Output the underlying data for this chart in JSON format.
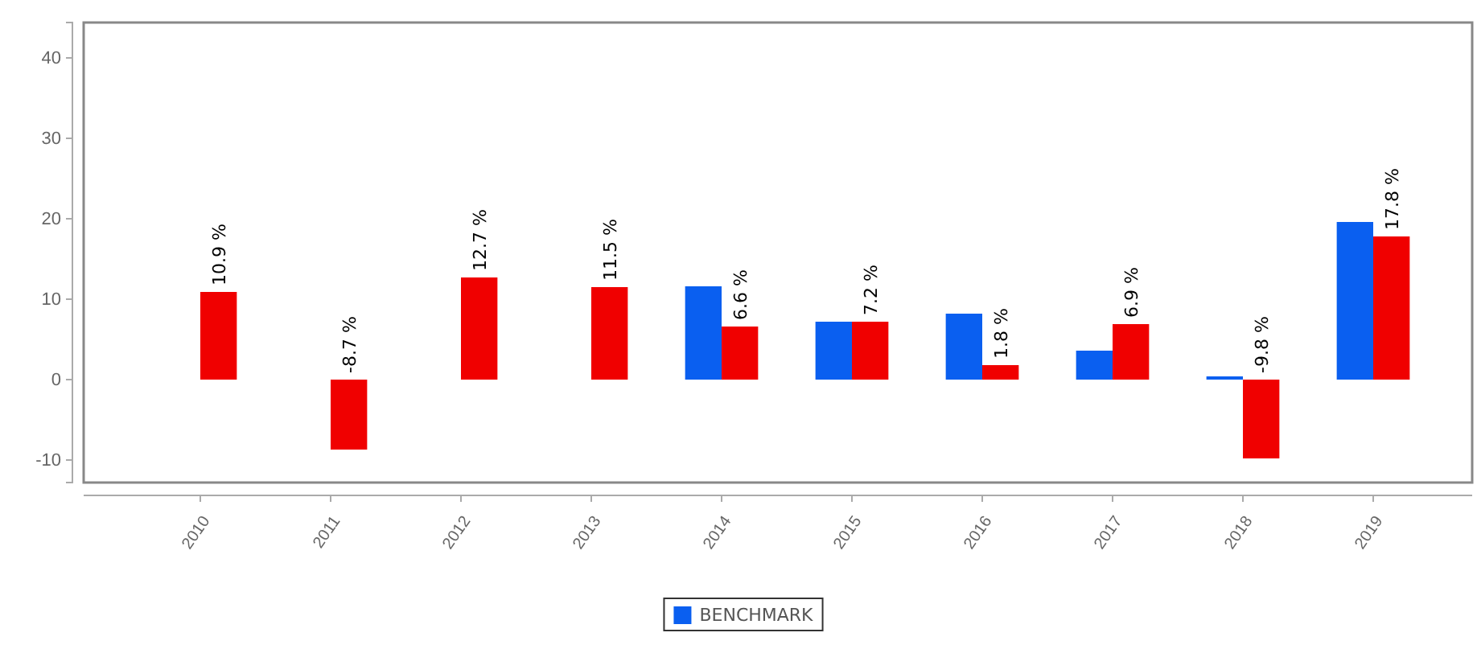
{
  "chart_data": {
    "type": "bar",
    "categories": [
      "2010",
      "2011",
      "2012",
      "2013",
      "2014",
      "2015",
      "2016",
      "2017",
      "2018",
      "2019"
    ],
    "series": [
      {
        "name": "BENCHMARK",
        "color": "#0a5ff0",
        "values": [
          null,
          null,
          null,
          null,
          11.6,
          7.2,
          8.2,
          3.6,
          0.4,
          19.6
        ]
      },
      {
        "color": "#f00000",
        "values": [
          10.9,
          -8.7,
          12.7,
          11.5,
          6.6,
          7.2,
          1.8,
          6.9,
          -9.8,
          17.8
        ],
        "value_labels": [
          "10.9 %",
          "-8.7 %",
          "12.7 %",
          "11.5 %",
          "6.6 %",
          "7.2 %",
          "1.8 %",
          "6.9 %",
          "-9.8 %",
          "17.8 %"
        ]
      }
    ],
    "ylim": [
      -12.8,
      44.4
    ],
    "yticks": [
      -10,
      0,
      10,
      20,
      30,
      40
    ],
    "grid": false,
    "legend": "bottom"
  }
}
